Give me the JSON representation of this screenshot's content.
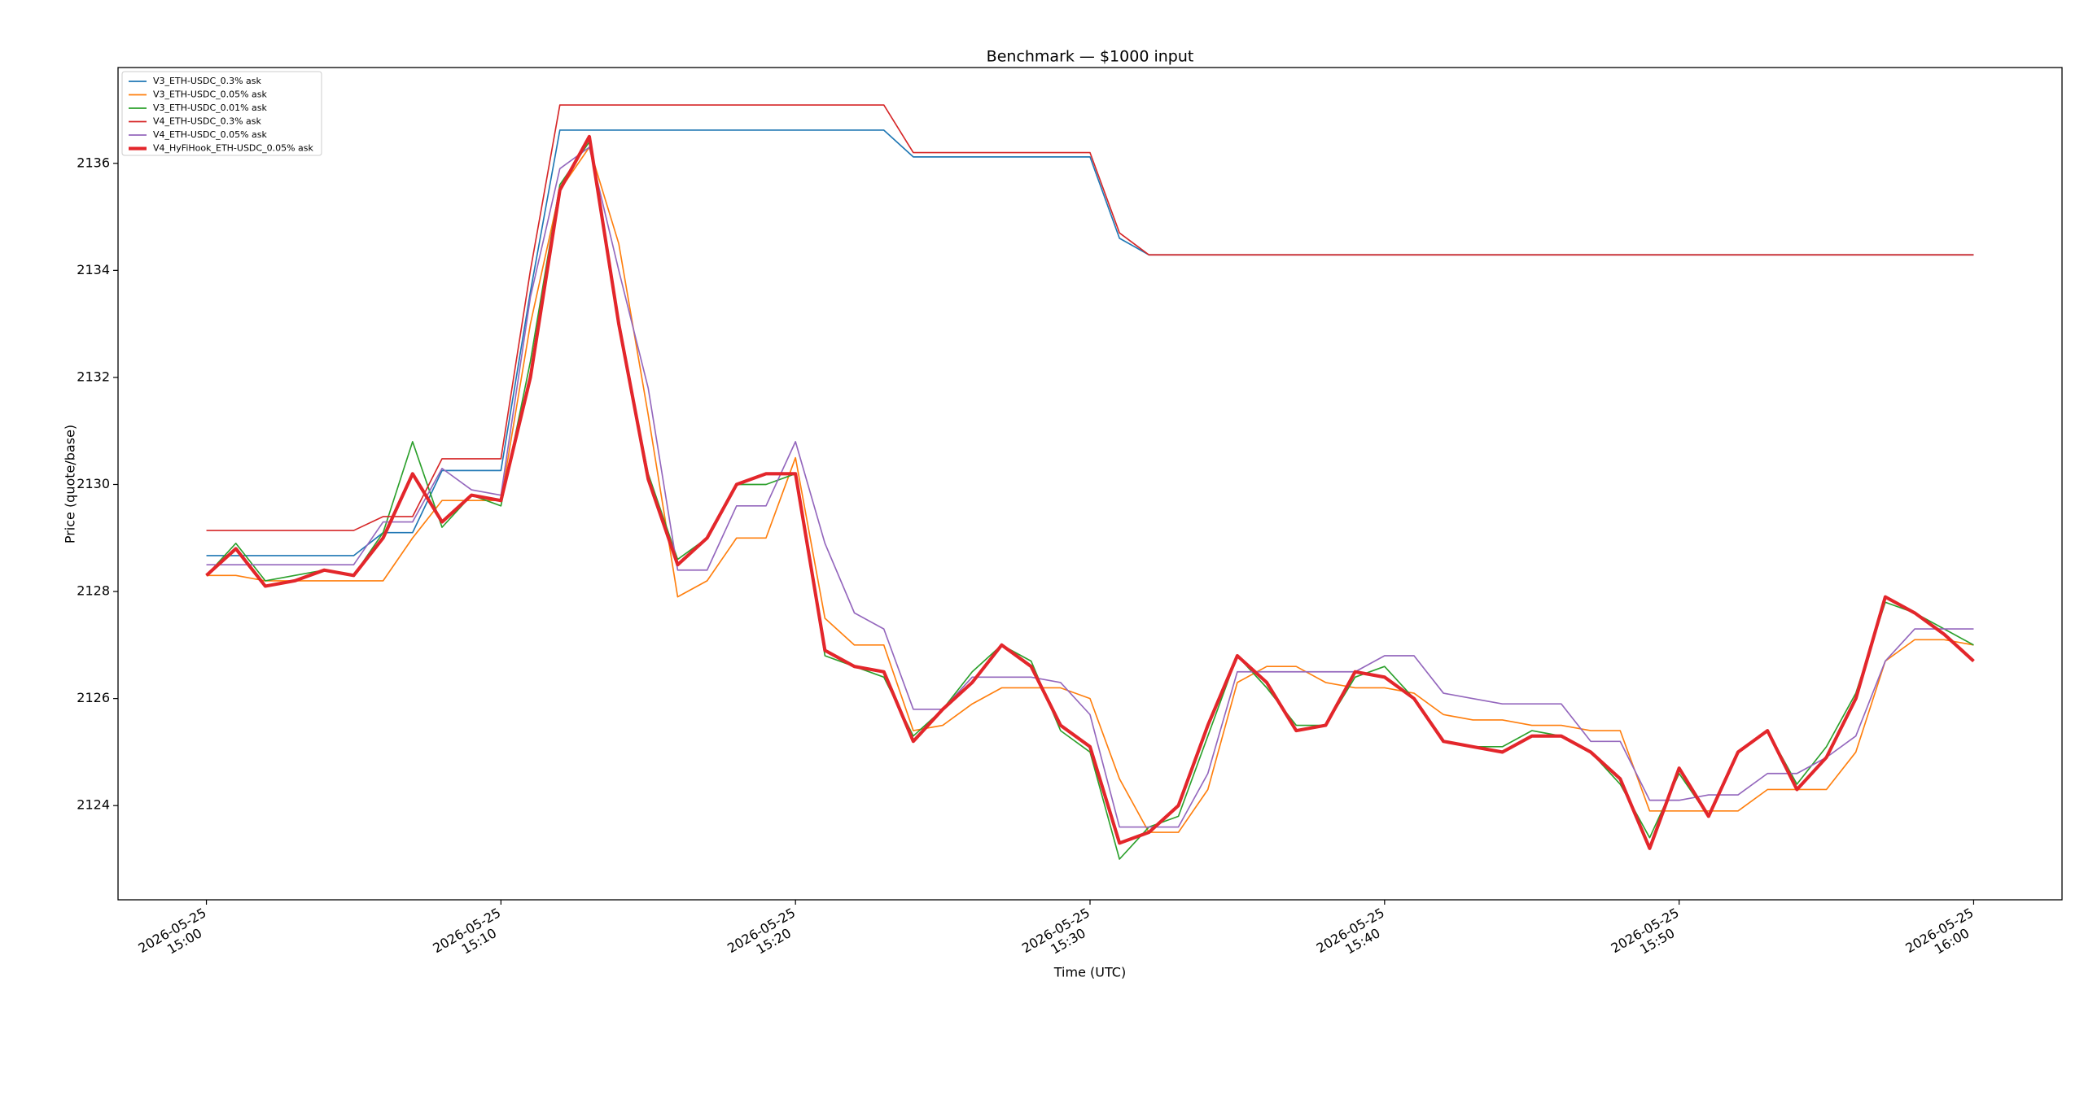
{
  "chart_data": {
    "type": "line",
    "title": "Benchmark — $1000 input",
    "x_label": "Time (UTC)",
    "y_label": "Price (quote/base)",
    "x": [
      "2026-05-25 15:00",
      "2026-05-25 15:01",
      "2026-05-25 15:02",
      "2026-05-25 15:03",
      "2026-05-25 15:04",
      "2026-05-25 15:05",
      "2026-05-25 15:06",
      "2026-05-25 15:07",
      "2026-05-25 15:08",
      "2026-05-25 15:09",
      "2026-05-25 15:10",
      "2026-05-25 15:11",
      "2026-05-25 15:12",
      "2026-05-25 15:13",
      "2026-05-25 15:14",
      "2026-05-25 15:15",
      "2026-05-25 15:16",
      "2026-05-25 15:17",
      "2026-05-25 15:18",
      "2026-05-25 15:19",
      "2026-05-25 15:20",
      "2026-05-25 15:21",
      "2026-05-25 15:22",
      "2026-05-25 15:23",
      "2026-05-25 15:24",
      "2026-05-25 15:25",
      "2026-05-25 15:26",
      "2026-05-25 15:27",
      "2026-05-25 15:28",
      "2026-05-25 15:29",
      "2026-05-25 15:30",
      "2026-05-25 15:31",
      "2026-05-25 15:32",
      "2026-05-25 15:33",
      "2026-05-25 15:34",
      "2026-05-25 15:35",
      "2026-05-25 15:36",
      "2026-05-25 15:37",
      "2026-05-25 15:38",
      "2026-05-25 15:39",
      "2026-05-25 15:40",
      "2026-05-25 15:41",
      "2026-05-25 15:42",
      "2026-05-25 15:43",
      "2026-05-25 15:44",
      "2026-05-25 15:45",
      "2026-05-25 15:46",
      "2026-05-25 15:47",
      "2026-05-25 15:48",
      "2026-05-25 15:49",
      "2026-05-25 15:50",
      "2026-05-25 15:51",
      "2026-05-25 15:52",
      "2026-05-25 15:53",
      "2026-05-25 15:54",
      "2026-05-25 15:55",
      "2026-05-25 15:56",
      "2026-05-25 15:57",
      "2026-05-25 15:58",
      "2026-05-25 15:59",
      "2026-05-25 16:00"
    ],
    "series": [
      {
        "name": "V3_ETH-USDC_0.3% ask",
        "color": "#1f77b4",
        "line_width": 1,
        "values": [
          2128.67,
          2128.67,
          2128.67,
          2128.67,
          2128.67,
          2128.67,
          2129.1,
          2129.1,
          2130.26,
          2130.26,
          2130.26,
          2133.6,
          2136.62,
          2136.62,
          2136.62,
          2136.62,
          2136.62,
          2136.62,
          2136.62,
          2136.62,
          2136.62,
          2136.62,
          2136.62,
          2136.62,
          2136.12,
          2136.12,
          2136.12,
          2136.12,
          2136.12,
          2136.12,
          2136.12,
          2134.6,
          2134.29,
          2134.29,
          2134.29,
          2134.29,
          2134.29,
          2134.29,
          2134.29,
          2134.29,
          2134.29,
          2134.29,
          2134.29,
          2134.29,
          2134.29,
          2134.29,
          2134.29,
          2134.29,
          2134.29,
          2134.29,
          2134.29,
          2134.29,
          2134.29,
          2134.29,
          2134.29,
          2134.29,
          2134.29,
          2134.29,
          2134.29,
          2134.29,
          2134.29
        ]
      },
      {
        "name": "V3_ETH-USDC_0.05% ask",
        "color": "#ff7f0e",
        "line_width": 1,
        "values": [
          2128.3,
          2128.3,
          2128.2,
          2128.2,
          2128.2,
          2128.2,
          2128.2,
          2129.0,
          2129.7,
          2129.7,
          2129.7,
          2133.0,
          2135.5,
          2136.3,
          2134.5,
          2131.3,
          2127.9,
          2128.2,
          2129.0,
          2129.0,
          2130.5,
          2127.5,
          2127.0,
          2127.0,
          2125.4,
          2125.5,
          2125.9,
          2126.2,
          2126.2,
          2126.2,
          2126.0,
          2124.5,
          2123.5,
          2123.5,
          2124.3,
          2126.3,
          2126.6,
          2126.6,
          2126.3,
          2126.2,
          2126.2,
          2126.1,
          2125.7,
          2125.6,
          2125.6,
          2125.5,
          2125.5,
          2125.4,
          2125.4,
          2123.9,
          2123.9,
          2123.9,
          2123.9,
          2124.3,
          2124.3,
          2124.3,
          2125.0,
          2126.7,
          2127.1,
          2127.1,
          2127.0
        ]
      },
      {
        "name": "V3_ETH-USDC_0.01% ask",
        "color": "#2ca02c",
        "line_width": 1,
        "values": [
          2128.3,
          2128.9,
          2128.2,
          2128.3,
          2128.4,
          2128.3,
          2129.1,
          2130.8,
          2129.2,
          2129.8,
          2129.6,
          2132.3,
          2135.6,
          2136.4,
          2133.0,
          2130.2,
          2128.6,
          2129.0,
          2130.0,
          2130.0,
          2130.2,
          2126.8,
          2126.6,
          2126.4,
          2125.3,
          2125.8,
          2126.5,
          2127.0,
          2126.7,
          2125.4,
          2125.0,
          2123.0,
          2123.6,
          2123.8,
          2125.3,
          2126.8,
          2126.2,
          2125.5,
          2125.5,
          2126.4,
          2126.6,
          2126.0,
          2125.2,
          2125.1,
          2125.1,
          2125.4,
          2125.3,
          2125.0,
          2124.4,
          2123.4,
          2124.6,
          2123.8,
          2125.0,
          2125.4,
          2124.4,
          2125.1,
          2126.1,
          2127.8,
          2127.6,
          2127.3,
          2127.0
        ]
      },
      {
        "name": "V4_ETH-USDC_0.3% ask",
        "color": "#d62728",
        "line_width": 1,
        "values": [
          2129.14,
          2129.14,
          2129.14,
          2129.14,
          2129.14,
          2129.14,
          2129.4,
          2129.4,
          2130.48,
          2130.48,
          2130.48,
          2134.0,
          2137.09,
          2137.09,
          2137.09,
          2137.09,
          2137.09,
          2137.09,
          2137.09,
          2137.09,
          2137.09,
          2137.09,
          2137.09,
          2137.09,
          2136.2,
          2136.2,
          2136.2,
          2136.2,
          2136.2,
          2136.2,
          2136.2,
          2134.7,
          2134.29,
          2134.29,
          2134.29,
          2134.29,
          2134.29,
          2134.29,
          2134.29,
          2134.29,
          2134.29,
          2134.29,
          2134.29,
          2134.29,
          2134.29,
          2134.29,
          2134.29,
          2134.29,
          2134.29,
          2134.29,
          2134.29,
          2134.29,
          2134.29,
          2134.29,
          2134.29,
          2134.29,
          2134.29,
          2134.29,
          2134.29,
          2134.29,
          2134.29
        ]
      },
      {
        "name": "V4_ETH-USDC_0.05% ask",
        "color": "#9467bd",
        "line_width": 1,
        "values": [
          2128.5,
          2128.5,
          2128.5,
          2128.5,
          2128.5,
          2128.5,
          2129.3,
          2129.3,
          2130.3,
          2129.9,
          2129.8,
          2133.5,
          2135.9,
          2136.3,
          2134.0,
          2131.8,
          2128.4,
          2128.4,
          2129.6,
          2129.6,
          2130.8,
          2128.9,
          2127.6,
          2127.3,
          2125.8,
          2125.8,
          2126.4,
          2126.4,
          2126.4,
          2126.3,
          2125.7,
          2123.6,
          2123.6,
          2123.6,
          2124.6,
          2126.5,
          2126.5,
          2126.5,
          2126.5,
          2126.5,
          2126.8,
          2126.8,
          2126.1,
          2126.0,
          2125.9,
          2125.9,
          2125.9,
          2125.2,
          2125.2,
          2124.1,
          2124.1,
          2124.2,
          2124.2,
          2124.6,
          2124.6,
          2124.9,
          2125.3,
          2126.7,
          2127.3,
          2127.3,
          2127.3
        ]
      },
      {
        "name": "V4_HyFiHook_ETH-USDC_0.05% ask",
        "color": "#e3262b",
        "line_width": 2.5,
        "values": [
          2128.3,
          2128.8,
          2128.1,
          2128.2,
          2128.4,
          2128.3,
          2129.0,
          2130.2,
          2129.3,
          2129.8,
          2129.7,
          2132.0,
          2135.5,
          2136.5,
          2133.0,
          2130.1,
          2128.5,
          2129.0,
          2130.0,
          2130.2,
          2130.2,
          2126.9,
          2126.6,
          2126.5,
          2125.2,
          2125.8,
          2126.3,
          2127.0,
          2126.6,
          2125.5,
          2125.1,
          2123.3,
          2123.5,
          2124.0,
          2125.5,
          2126.8,
          2126.3,
          2125.4,
          2125.5,
          2126.5,
          2126.4,
          2126.0,
          2125.2,
          2125.1,
          2125.0,
          2125.3,
          2125.3,
          2125.0,
          2124.5,
          2123.2,
          2124.7,
          2123.8,
          2125.0,
          2125.4,
          2124.3,
          2124.9,
          2126.0,
          2127.9,
          2127.6,
          2127.2,
          2126.7
        ]
      }
    ],
    "xlim": [
      "2026-05-25 14:57",
      "2026-05-25 16:03"
    ],
    "xticks": [
      {
        "value": "2026-05-25 15:00",
        "label": [
          "2026-05-25",
          "15:00"
        ]
      },
      {
        "value": "2026-05-25 15:10",
        "label": [
          "2026-05-25",
          "15:10"
        ]
      },
      {
        "value": "2026-05-25 15:20",
        "label": [
          "2026-05-25",
          "15:20"
        ]
      },
      {
        "value": "2026-05-25 15:30",
        "label": [
          "2026-05-25",
          "15:30"
        ]
      },
      {
        "value": "2026-05-25 15:40",
        "label": [
          "2026-05-25",
          "15:40"
        ]
      },
      {
        "value": "2026-05-25 15:50",
        "label": [
          "2026-05-25",
          "15:50"
        ]
      },
      {
        "value": "2026-05-25 16:00",
        "label": [
          "2026-05-25",
          "16:00"
        ]
      }
    ],
    "ylim": [
      2122.24,
      2137.79
    ],
    "yticks": [
      2124,
      2126,
      2128,
      2130,
      2132,
      2134,
      2136
    ],
    "grid": false,
    "legend": "upper left"
  }
}
